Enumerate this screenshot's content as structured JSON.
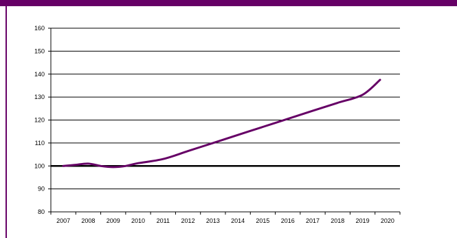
{
  "colors": {
    "accent": "#660066",
    "line": "#660066",
    "grid": "#000000",
    "baseline": "#000000"
  },
  "chart_data": {
    "type": "line",
    "title": "",
    "xlabel": "",
    "ylabel": "",
    "grid": true,
    "legend": "none",
    "ylim": [
      80,
      160
    ],
    "xlim": [
      2007,
      2020
    ],
    "y_ticks": [
      "80",
      "90",
      "100",
      "110",
      "120",
      "130",
      "140",
      "150",
      "160"
    ],
    "x_ticks": [
      "2007",
      "2008",
      "2009",
      "2010",
      "2011",
      "2012",
      "2013",
      "2014",
      "2015",
      "2016",
      "2017",
      "2018",
      "2019",
      "2020"
    ],
    "reference_line": 100,
    "series": [
      {
        "x": [
          2007,
          2007.5,
          2008,
          2008.5,
          2009,
          2009.5,
          2010,
          2011,
          2012,
          2013,
          2014,
          2015,
          2016,
          2017,
          2018,
          2019,
          2019.7
        ],
        "values": [
          100,
          100.5,
          101,
          100,
          99.5,
          100,
          101.2,
          103,
          106.5,
          110,
          113.5,
          117,
          120.5,
          124,
          127.5,
          131,
          137.5
        ]
      }
    ]
  }
}
